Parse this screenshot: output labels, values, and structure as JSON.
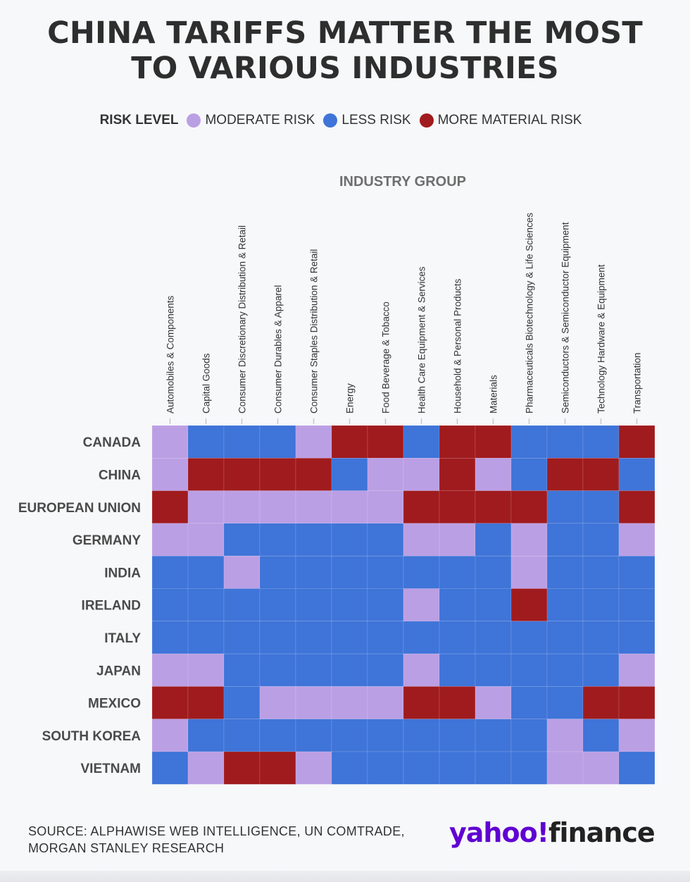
{
  "title": {
    "line1": "CHINA TARIFFS MATTER THE MOST",
    "line2": "TO VARIOUS INDUSTRIES"
  },
  "legend": {
    "title": "RISK LEVEL",
    "items": [
      {
        "key": "moderate",
        "label": "MODERATE RISK",
        "color": "#bb9fe4"
      },
      {
        "key": "less",
        "label": "LESS RISK",
        "color": "#3f74d8"
      },
      {
        "key": "material",
        "label": "MORE MATERIAL RISK",
        "color": "#a01b1e"
      }
    ]
  },
  "chart_data": {
    "type": "heatmap",
    "title": "CHINA TARIFFS MATTER THE MOST TO VARIOUS INDUSTRIES",
    "xlabel": "INDUSTRY GROUP",
    "ylabel": "",
    "legend_position": "top",
    "x_categories": [
      "Automobiles & Components",
      "Capital Goods",
      "Consumer Discretionary Distribution & Retail",
      "Consumer Durables & Apparel",
      "Consumer Staples Distribution & Retail",
      "Energy",
      "Food Beverage & Tobacco",
      "Health Care Equipment & Services",
      "Household & Personal Products",
      "Materials",
      "Pharmaceuticals Biotechnology & Life Sciences",
      "Semiconductors & Semiconductor Equipment",
      "Technology Hardware & Equipment",
      "Transportation"
    ],
    "y_categories": [
      "CANADA",
      "CHINA",
      "EUROPEAN UNION",
      "GERMANY",
      "INDIA",
      "IRELAND",
      "ITALY",
      "JAPAN",
      "MEXICO",
      "SOUTH KOREA",
      "VIETNAM"
    ],
    "levels": {
      "M": "MODERATE RISK",
      "L": "LESS RISK",
      "R": "MORE MATERIAL RISK"
    },
    "values": [
      [
        "M",
        "L",
        "L",
        "L",
        "M",
        "R",
        "R",
        "L",
        "R",
        "R",
        "L",
        "L",
        "L",
        "R"
      ],
      [
        "M",
        "R",
        "R",
        "R",
        "R",
        "L",
        "M",
        "M",
        "R",
        "M",
        "L",
        "R",
        "R",
        "L"
      ],
      [
        "R",
        "M",
        "M",
        "M",
        "M",
        "M",
        "M",
        "R",
        "R",
        "R",
        "R",
        "L",
        "L",
        "R"
      ],
      [
        "M",
        "M",
        "L",
        "L",
        "L",
        "L",
        "L",
        "M",
        "M",
        "L",
        "M",
        "L",
        "L",
        "M"
      ],
      [
        "L",
        "L",
        "M",
        "L",
        "L",
        "L",
        "L",
        "L",
        "L",
        "L",
        "M",
        "L",
        "L",
        "L"
      ],
      [
        "L",
        "L",
        "L",
        "L",
        "L",
        "L",
        "L",
        "M",
        "L",
        "L",
        "R",
        "L",
        "L",
        "L"
      ],
      [
        "L",
        "L",
        "L",
        "L",
        "L",
        "L",
        "L",
        "L",
        "L",
        "L",
        "L",
        "L",
        "L",
        "L"
      ],
      [
        "M",
        "M",
        "L",
        "L",
        "L",
        "L",
        "L",
        "M",
        "L",
        "L",
        "L",
        "L",
        "L",
        "M"
      ],
      [
        "R",
        "R",
        "L",
        "M",
        "M",
        "M",
        "M",
        "R",
        "R",
        "M",
        "L",
        "L",
        "R",
        "R"
      ],
      [
        "M",
        "L",
        "L",
        "L",
        "L",
        "L",
        "L",
        "L",
        "L",
        "L",
        "L",
        "M",
        "L",
        "M"
      ],
      [
        "L",
        "M",
        "R",
        "R",
        "M",
        "L",
        "L",
        "L",
        "L",
        "L",
        "L",
        "M",
        "M",
        "L"
      ]
    ],
    "colors": {
      "M": "#bb9fe4",
      "L": "#3f74d8",
      "R": "#a01b1e"
    }
  },
  "source": {
    "line1": "SOURCE: ALPHAWISE WEB INTELLIGENCE, UN COMTRADE,",
    "line2": "MORGAN STANLEY RESEARCH"
  },
  "brand": {
    "part1": "yahoo!",
    "part2": "finance"
  }
}
